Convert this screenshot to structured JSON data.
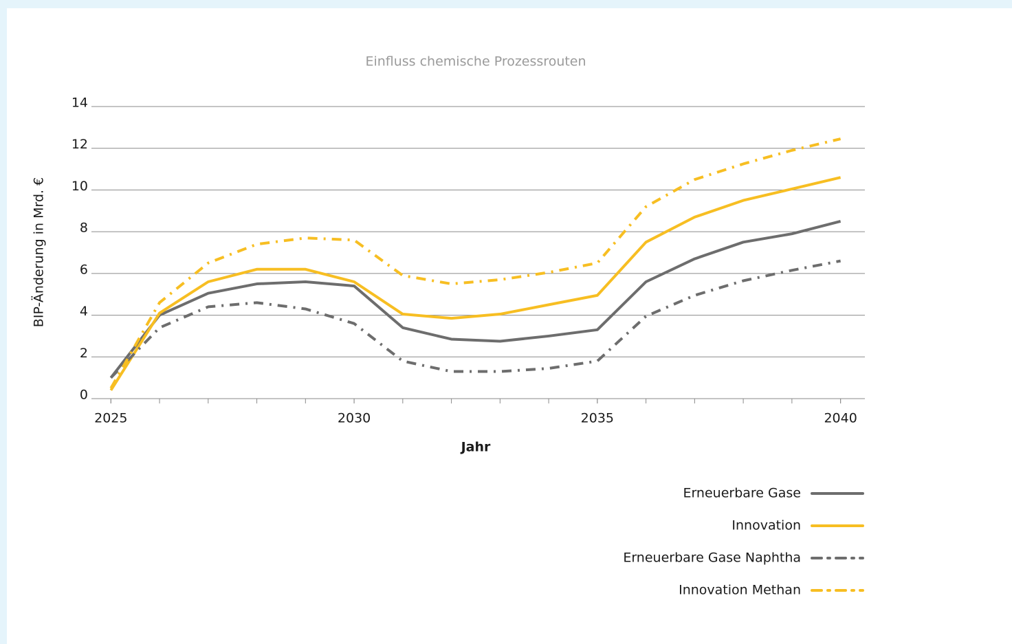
{
  "chart_data": {
    "type": "line",
    "title": "Einfluss chemische Prozessrouten",
    "x_label": "Jahr",
    "y_label": "BIP-Änderung in Mrd. €",
    "x": [
      2025,
      2026,
      2027,
      2028,
      2029,
      2030,
      2031,
      2032,
      2033,
      2034,
      2035,
      2036,
      2037,
      2038,
      2039,
      2040
    ],
    "xlim": [
      2024.6,
      2040.5
    ],
    "xticks": [
      2025,
      2030,
      2035,
      2040
    ],
    "ylim": [
      0,
      14
    ],
    "yticks": [
      0,
      2,
      4,
      6,
      8,
      10,
      12,
      14
    ],
    "grid": true,
    "legend": "bottom-right",
    "series": [
      {
        "name": "Erneuerbare Gase",
        "color": "#6d6d6d",
        "style": "solid",
        "values": [
          1.0,
          4.0,
          5.05,
          5.5,
          5.6,
          5.4,
          3.4,
          2.85,
          2.75,
          3.0,
          3.3,
          5.6,
          6.7,
          7.5,
          7.9,
          8.5
        ]
      },
      {
        "name": "Innovation",
        "color": "#f7be22",
        "style": "solid",
        "values": [
          0.4,
          4.1,
          5.6,
          6.2,
          6.2,
          5.6,
          4.05,
          3.85,
          4.05,
          4.5,
          4.95,
          7.5,
          8.7,
          9.5,
          10.05,
          10.6
        ]
      },
      {
        "name": "Erneuerbare Gase Naphtha",
        "color": "#6d6d6d",
        "style": "dashdot",
        "values": [
          1.0,
          3.4,
          4.4,
          4.6,
          4.3,
          3.6,
          1.8,
          1.3,
          1.3,
          1.45,
          1.8,
          3.95,
          4.95,
          5.65,
          6.15,
          6.6
        ]
      },
      {
        "name": "Innovation Methan",
        "color": "#f7be22",
        "style": "dashdot",
        "values": [
          0.5,
          4.6,
          6.5,
          7.4,
          7.7,
          7.6,
          5.9,
          5.5,
          5.7,
          6.05,
          6.5,
          9.2,
          10.5,
          11.25,
          11.9,
          12.45
        ]
      }
    ]
  }
}
